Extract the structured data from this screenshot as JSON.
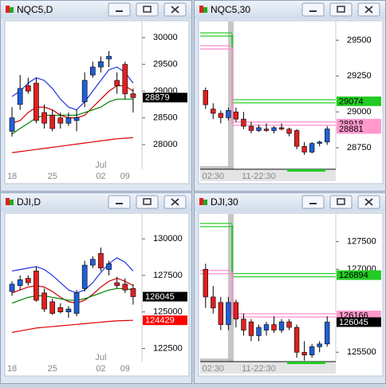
{
  "chart_data": [
    {
      "type": "candlestick",
      "title": "NQC5,D",
      "categories": [
        "18",
        null,
        null,
        null,
        null,
        "25",
        null,
        null,
        null,
        null,
        null,
        "02",
        null,
        null,
        "09",
        null
      ],
      "month_label": "Jul",
      "open": [
        28250,
        28750,
        29100,
        29150,
        28600,
        28550,
        28500,
        28400,
        28450,
        28800,
        29300,
        29450,
        29600,
        29200,
        29500,
        28950
      ],
      "high": [
        28700,
        29300,
        29250,
        29250,
        28750,
        28650,
        28600,
        28600,
        28650,
        29350,
        29550,
        29650,
        29750,
        29350,
        29550,
        29050
      ],
      "low": [
        28150,
        28650,
        28950,
        28400,
        28300,
        28250,
        28300,
        28350,
        28250,
        28700,
        29250,
        29350,
        29450,
        28950,
        28850,
        28600
      ],
      "close": [
        28500,
        29050,
        29000,
        28450,
        28400,
        28300,
        28400,
        28500,
        28500,
        29200,
        29450,
        29550,
        29650,
        29100,
        28950,
        28879
      ],
      "up_color": "#1f5fd6",
      "down_color": "#e02020",
      "series": [
        {
          "color": "#2233dd",
          "values": [
            28900,
            29000,
            29150,
            29250,
            29200,
            29050,
            28850,
            28700,
            28650,
            28800,
            29000,
            29200,
            29400,
            29450,
            29350,
            29150
          ]
        },
        {
          "color": "#cc0000",
          "values": [
            28400,
            28450,
            28600,
            28700,
            28700,
            28650,
            28550,
            28500,
            28500,
            28550,
            28700,
            28850,
            29000,
            29100,
            29100,
            29000
          ]
        },
        {
          "color": "#008000",
          "values": [
            28200,
            28300,
            28400,
            28500,
            28550,
            28550,
            28550,
            28550,
            28550,
            28600,
            28650,
            28700,
            28800,
            28850,
            28850,
            28850
          ]
        },
        {
          "color": "#e00000",
          "values": [
            27850,
            27870,
            27890,
            27910,
            27930,
            27950,
            27970,
            27990,
            28010,
            28030,
            28050,
            28070,
            28090,
            28110,
            28120,
            28130
          ]
        }
      ],
      "ylim": [
        27540,
        30300
      ],
      "yticks": [
        28000,
        28500,
        29000,
        29500,
        30000
      ],
      "price_tags": [
        {
          "value": 28879,
          "color": "#000000",
          "text_color": "#ffffff"
        }
      ]
    },
    {
      "type": "candlestick",
      "title": "NQC5,30",
      "categories": [
        null,
        "02:30",
        null,
        null,
        null,
        null,
        null,
        "11-22:30",
        null,
        null,
        null,
        null,
        null,
        null,
        null,
        null,
        null
      ],
      "open": [
        29150,
        29020,
        28990,
        28960,
        29000,
        28950,
        28900,
        28870,
        28880,
        28870,
        28890,
        28880,
        28870,
        28760,
        28720,
        28780,
        28790
      ],
      "high": [
        29170,
        29060,
        29010,
        29030,
        29030,
        29000,
        28930,
        28910,
        28920,
        28900,
        28920,
        28890,
        28880,
        28790,
        28790,
        28800,
        28900
      ],
      "low": [
        29020,
        28950,
        28920,
        28940,
        28930,
        28880,
        28850,
        28860,
        28860,
        28850,
        28870,
        28830,
        28740,
        28700,
        28710,
        28760,
        28770
      ],
      "close": [
        29050,
        28990,
        28960,
        29010,
        28950,
        28900,
        28870,
        28890,
        28870,
        28890,
        28880,
        28850,
        28760,
        28720,
        28780,
        28790,
        28881
      ],
      "up_color": "#1f5fd6",
      "down_color": "#e02020",
      "series": [
        {
          "color": "#22cc22",
          "style": "step",
          "values": [
            29540,
            29540,
            29540,
            29540,
            29074,
            29074,
            29074,
            29074,
            29074,
            29074,
            29074,
            29074,
            29074,
            29074,
            29074,
            29074,
            29074
          ]
        },
        {
          "color": "#ff88cc",
          "style": "step",
          "values": [
            29450,
            29450,
            29450,
            29450,
            28918,
            28918,
            28918,
            28918,
            28918,
            28918,
            28918,
            28918,
            28918,
            28918,
            28918,
            28918,
            28918
          ]
        }
      ],
      "ylim": [
        28600,
        29630
      ],
      "yticks": [
        28750,
        29000,
        29250,
        29500
      ],
      "price_tags": [
        {
          "value": 29074,
          "color": "#22cc22",
          "text_color": "#000000"
        },
        {
          "value": 28918,
          "color": "#ff99cc",
          "text_color": "#000000"
        },
        {
          "value": 28881,
          "color": "#ff99cc",
          "text_color": "#000000"
        }
      ]
    },
    {
      "type": "candlestick",
      "title": "DJI,D",
      "categories": [
        "18",
        null,
        null,
        null,
        null,
        "25",
        null,
        null,
        null,
        null,
        null,
        "02",
        null,
        null,
        "09",
        null
      ],
      "month_label": "Jul",
      "open": [
        126400,
        126800,
        127300,
        127800,
        126300,
        125700,
        125300,
        125000,
        124900,
        126600,
        128200,
        129000,
        127900,
        127000,
        126900,
        126600
      ],
      "high": [
        127100,
        127500,
        127500,
        128100,
        126600,
        125900,
        125600,
        125400,
        126500,
        128500,
        128800,
        129400,
        128500,
        127400,
        127300,
        126900
      ],
      "low": [
        126100,
        126500,
        126800,
        125700,
        125000,
        124800,
        124900,
        124600,
        124700,
        126400,
        128000,
        127800,
        127500,
        126600,
        126300,
        125500
      ],
      "close": [
        126900,
        127200,
        127000,
        125800,
        125200,
        124900,
        125000,
        125200,
        126300,
        128200,
        128600,
        128000,
        128300,
        126800,
        126500,
        126045
      ],
      "up_color": "#1f5fd6",
      "down_color": "#e02020",
      "series": [
        {
          "color": "#2233dd",
          "values": [
            127800,
            127900,
            128000,
            128100,
            127900,
            127500,
            127000,
            126500,
            126300,
            126500,
            127000,
            127700,
            128300,
            128700,
            128400,
            127800
          ]
        },
        {
          "color": "#cc0000",
          "values": [
            126300,
            126500,
            126700,
            126800,
            126700,
            126400,
            126000,
            125700,
            125600,
            125800,
            126200,
            126700,
            127100,
            127300,
            127100,
            126800
          ]
        },
        {
          "color": "#008000",
          "values": [
            125600,
            125800,
            126000,
            126100,
            126100,
            126000,
            125900,
            125800,
            125800,
            125900,
            126100,
            126300,
            126500,
            126600,
            126600,
            126500
          ]
        },
        {
          "color": "#e00000",
          "values": [
            123600,
            123700,
            123800,
            123900,
            123950,
            124000,
            124050,
            124100,
            124150,
            124200,
            124250,
            124300,
            124350,
            124390,
            124410,
            124429
          ]
        }
      ],
      "ylim": [
        121600,
        131700
      ],
      "yticks": [
        122500,
        125000,
        127500,
        130000
      ],
      "price_tags": [
        {
          "value": 126045,
          "color": "#000000",
          "text_color": "#ffffff"
        },
        {
          "value": 124429,
          "color": "#ff0000",
          "text_color": "#ffffff"
        }
      ]
    },
    {
      "type": "candlestick",
      "title": "DJI,30",
      "categories": [
        null,
        "02:30",
        null,
        null,
        null,
        null,
        null,
        "11-22:30",
        null,
        null,
        null,
        null,
        null,
        null,
        null,
        null,
        null
      ],
      "open": [
        127000,
        126500,
        126400,
        126000,
        126400,
        126100,
        126050,
        125800,
        125900,
        126000,
        125900,
        126050,
        125950,
        125500,
        125450,
        125600,
        125650
      ],
      "high": [
        127100,
        126700,
        126500,
        126500,
        126450,
        126200,
        126100,
        126000,
        126050,
        126150,
        126100,
        126100,
        126000,
        125700,
        125650,
        125700,
        126150
      ],
      "low": [
        126300,
        126200,
        125900,
        125900,
        125950,
        125800,
        125700,
        125700,
        125800,
        125850,
        125850,
        125900,
        125400,
        125350,
        125400,
        125500,
        125600
      ],
      "close": [
        126500,
        126300,
        126000,
        126400,
        126100,
        125900,
        125800,
        125950,
        126000,
        125900,
        126050,
        125950,
        125500,
        125450,
        125600,
        125650,
        126045
      ],
      "up_color": "#1f5fd6",
      "down_color": "#e02020",
      "series": [
        {
          "color": "#22cc22",
          "style": "step",
          "values": [
            127800,
            127800,
            127800,
            127800,
            126894,
            126894,
            126894,
            126894,
            126894,
            126894,
            126894,
            126894,
            126894,
            126894,
            126894,
            126894,
            126894
          ]
        },
        {
          "color": "#ff88cc",
          "style": "step",
          "values": [
            126950,
            126950,
            126950,
            126950,
            126166,
            126166,
            126166,
            126166,
            126166,
            126166,
            126166,
            126166,
            126166,
            126166,
            126166,
            126166,
            126166
          ]
        }
      ],
      "ylim": [
        125330,
        128000
      ],
      "yticks": [
        125500,
        127000,
        127500
      ],
      "price_tags": [
        {
          "value": 126894,
          "color": "#22cc22",
          "text_color": "#000000"
        },
        {
          "value": 126166,
          "color": "#ff99cc",
          "text_color": "#000000"
        },
        {
          "value": 126045,
          "color": "#000000",
          "text_color": "#ffffff"
        }
      ]
    }
  ]
}
